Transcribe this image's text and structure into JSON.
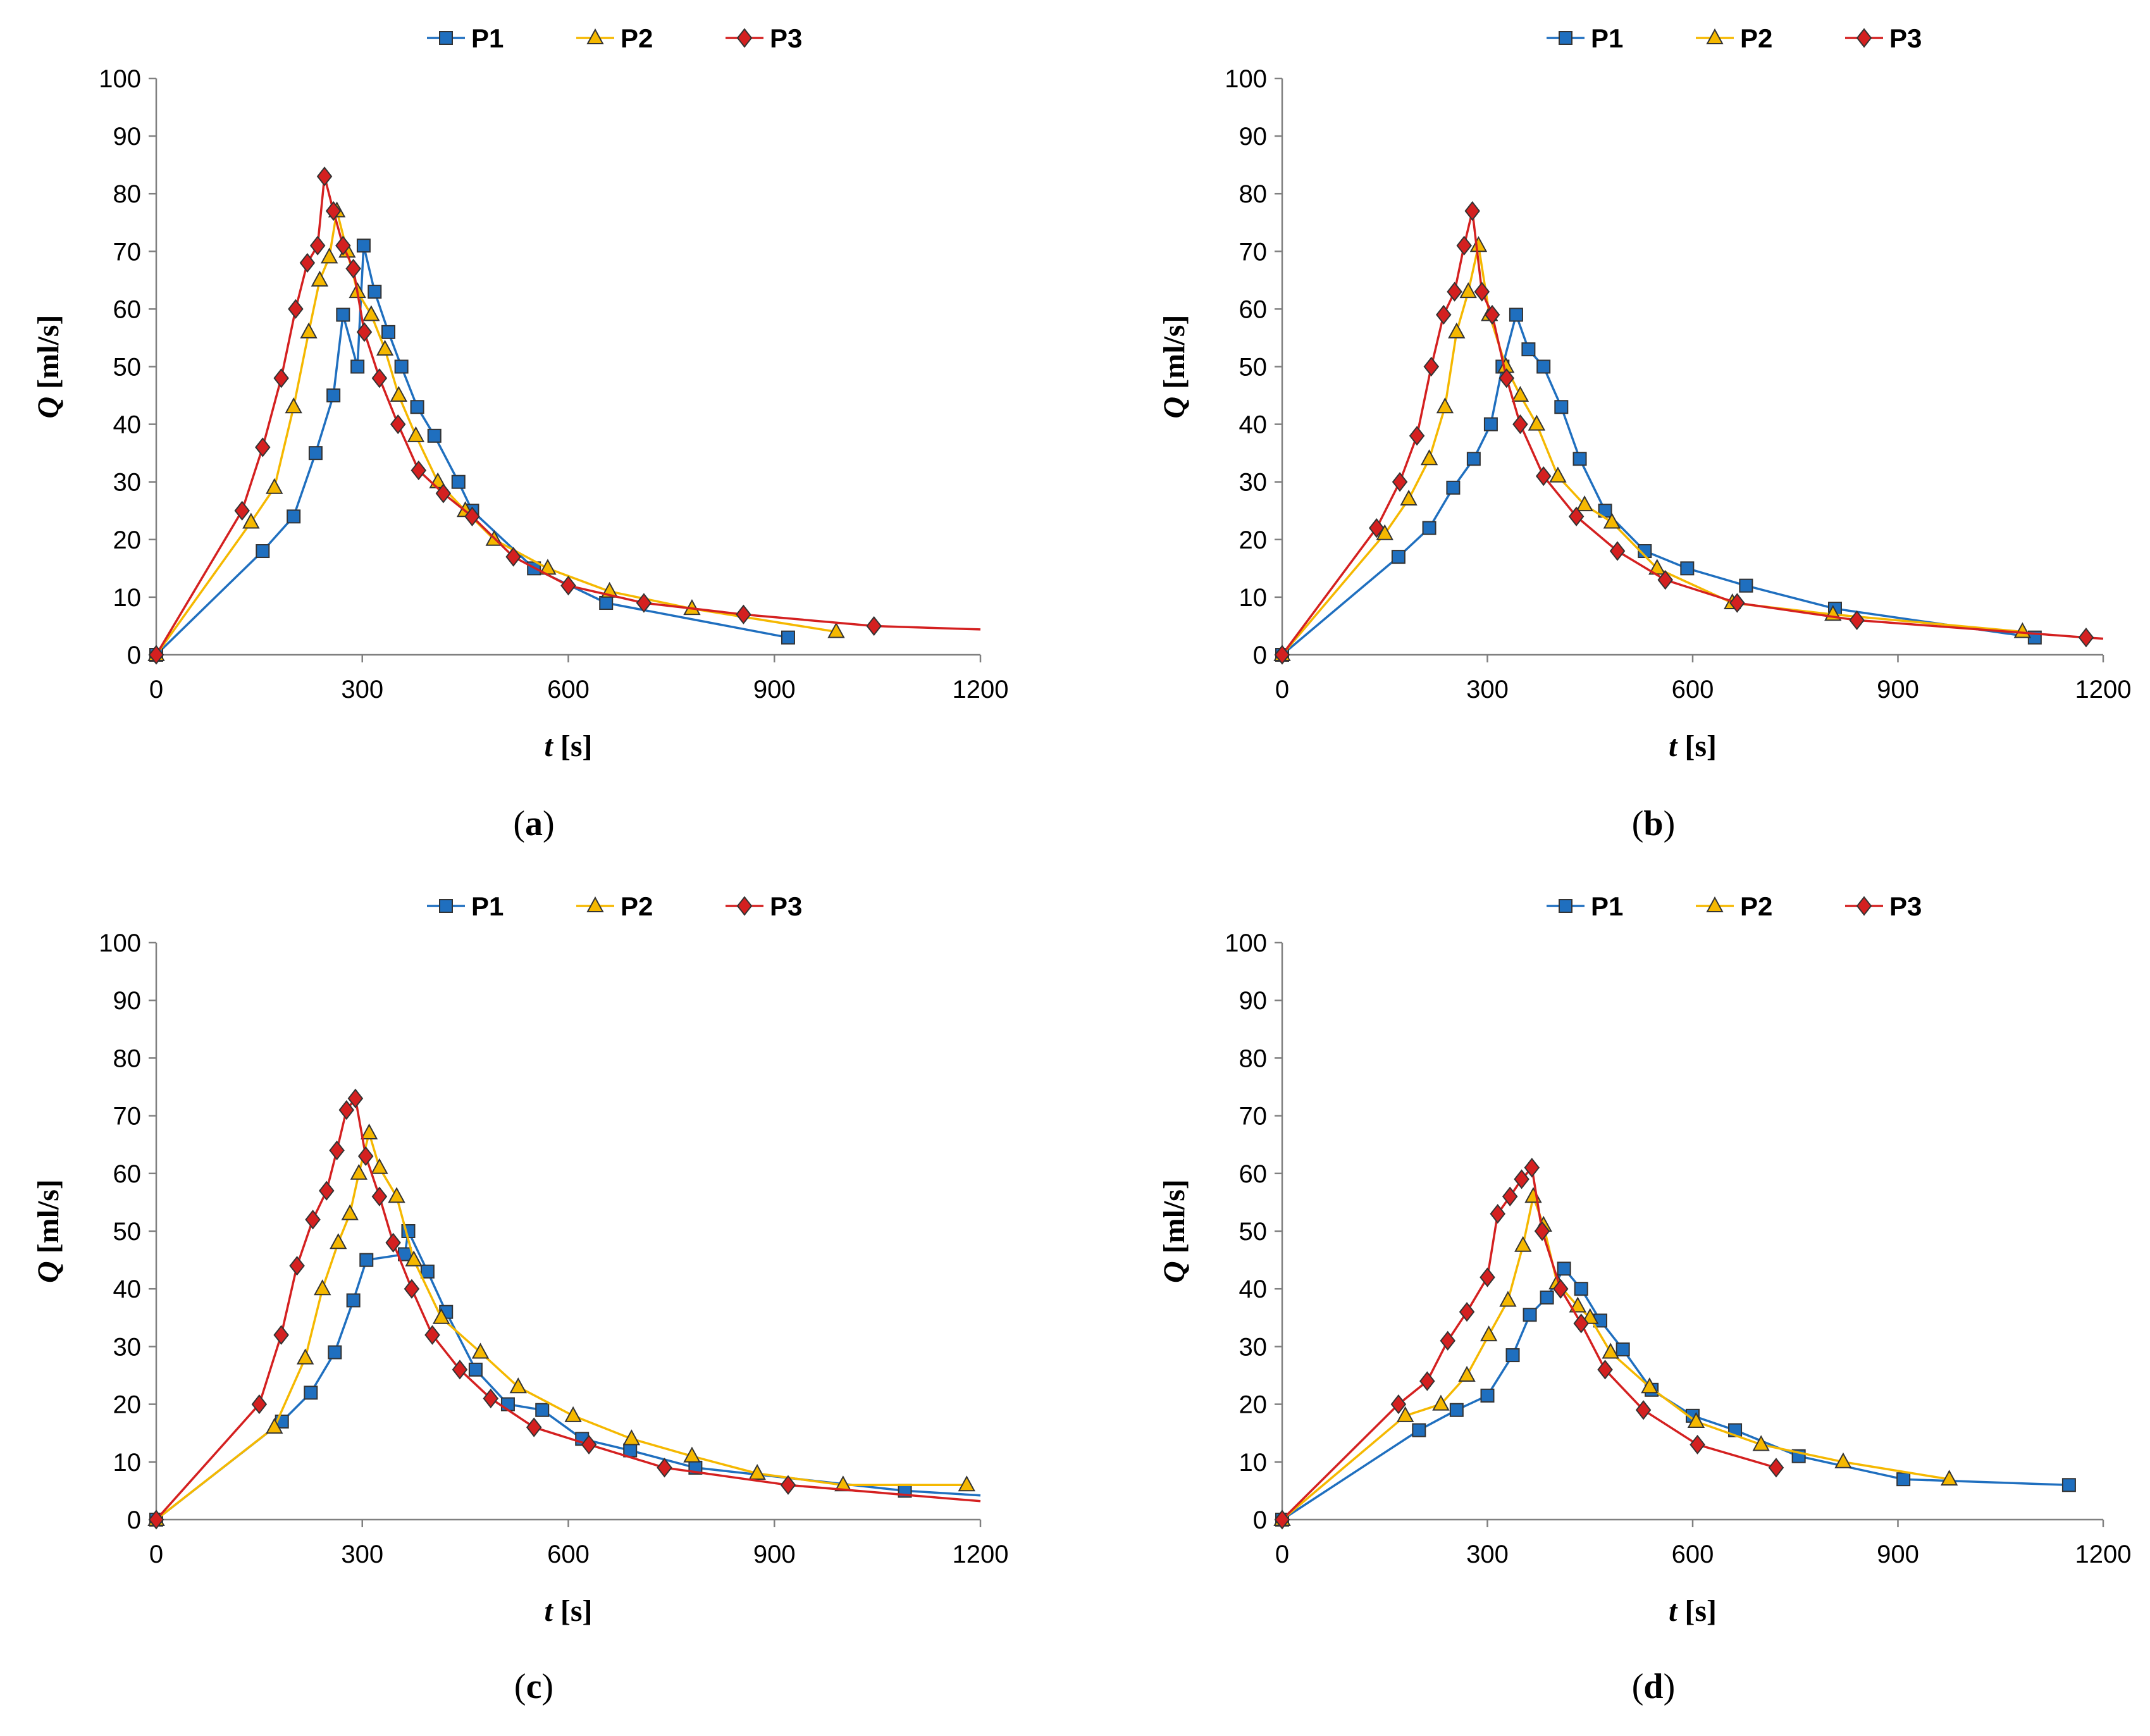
{
  "colors": {
    "P1": "#1f6fbf",
    "P2": "#f5b800",
    "P3": "#d42020",
    "axis": "#808080"
  },
  "chart_data": [
    {
      "panel": "a",
      "caption": "a",
      "type": "line",
      "xlabel_var": "t",
      "xlabel_unit": "[s]",
      "ylabel_var": "Q",
      "ylabel_unit": "[ml/s]",
      "xlim": [
        0,
        1200
      ],
      "ylim": [
        0,
        100
      ],
      "xticks": [
        0,
        300,
        600,
        900,
        1200
      ],
      "yticks": [
        0,
        10,
        20,
        30,
        40,
        50,
        60,
        70,
        80,
        90,
        100
      ],
      "legend": [
        "P1",
        "P2",
        "P3"
      ],
      "series": [
        {
          "name": "P1",
          "marker": "square",
          "points": [
            [
              0,
              0
            ],
            [
              155,
              18
            ],
            [
              200,
              24
            ],
            [
              232,
              35
            ],
            [
              258,
              45
            ],
            [
              272,
              59
            ],
            [
              293,
              50
            ],
            [
              302,
              71
            ],
            [
              318,
              63
            ],
            [
              338,
              56
            ],
            [
              357,
              50
            ],
            [
              380,
              43
            ],
            [
              405,
              38
            ],
            [
              440,
              30
            ],
            [
              460,
              25
            ],
            [
              550,
              15
            ],
            [
              655,
              9
            ],
            [
              920,
              3
            ]
          ]
        },
        {
          "name": "P2",
          "marker": "triangle",
          "points": [
            [
              0,
              0
            ],
            [
              138,
              23
            ],
            [
              172,
              29
            ],
            [
              200,
              43
            ],
            [
              222,
              56
            ],
            [
              238,
              65
            ],
            [
              252,
              69
            ],
            [
              263,
              77
            ],
            [
              278,
              70
            ],
            [
              293,
              63
            ],
            [
              313,
              59
            ],
            [
              333,
              53
            ],
            [
              353,
              45
            ],
            [
              378,
              38
            ],
            [
              410,
              30
            ],
            [
              450,
              25
            ],
            [
              492,
              20
            ],
            [
              570,
              15
            ],
            [
              660,
              11
            ],
            [
              780,
              8
            ],
            [
              990,
              4
            ]
          ]
        },
        {
          "name": "P3",
          "marker": "diamond",
          "points": [
            [
              0,
              0
            ],
            [
              125,
              25
            ],
            [
              155,
              36
            ],
            [
              182,
              48
            ],
            [
              203,
              60
            ],
            [
              220,
              68
            ],
            [
              235,
              71
            ],
            [
              245,
              83
            ],
            [
              258,
              77
            ],
            [
              272,
              71
            ],
            [
              287,
              67
            ],
            [
              303,
              56
            ],
            [
              325,
              48
            ],
            [
              352,
              40
            ],
            [
              382,
              32
            ],
            [
              418,
              28
            ],
            [
              460,
              24
            ],
            [
              520,
              17
            ],
            [
              600,
              12
            ],
            [
              710,
              9
            ],
            [
              855,
              7
            ],
            [
              1045,
              5
            ],
            [
              1200,
              4.4
            ]
          ]
        }
      ]
    },
    {
      "panel": "b",
      "caption": "b",
      "type": "line",
      "xlabel_var": "t",
      "xlabel_unit": "[s]",
      "ylabel_var": "Q",
      "ylabel_unit": "[ml/s]",
      "xlim": [
        0,
        1200
      ],
      "ylim": [
        0,
        100
      ],
      "xticks": [
        0,
        300,
        600,
        900,
        1200
      ],
      "yticks": [
        0,
        10,
        20,
        30,
        40,
        50,
        60,
        70,
        80,
        90,
        100
      ],
      "legend": [
        "P1",
        "P2",
        "P3"
      ],
      "series": [
        {
          "name": "P1",
          "marker": "square",
          "points": [
            [
              0,
              0
            ],
            [
              170,
              17
            ],
            [
              215,
              22
            ],
            [
              250,
              29
            ],
            [
              280,
              34
            ],
            [
              305,
              40
            ],
            [
              322,
              50
            ],
            [
              342,
              59
            ],
            [
              360,
              53
            ],
            [
              382,
              50
            ],
            [
              408,
              43
            ],
            [
              435,
              34
            ],
            [
              472,
              25
            ],
            [
              530,
              18
            ],
            [
              592,
              15
            ],
            [
              678,
              12
            ],
            [
              808,
              8
            ],
            [
              1100,
              3
            ]
          ]
        },
        {
          "name": "P2",
          "marker": "triangle",
          "points": [
            [
              0,
              0
            ],
            [
              150,
              21
            ],
            [
              185,
              27
            ],
            [
              215,
              34
            ],
            [
              238,
              43
            ],
            [
              255,
              56
            ],
            [
              272,
              63
            ],
            [
              287,
              71
            ],
            [
              303,
              59
            ],
            [
              327,
              50
            ],
            [
              348,
              45
            ],
            [
              372,
              40
            ],
            [
              403,
              31
            ],
            [
              442,
              26
            ],
            [
              482,
              23
            ],
            [
              548,
              15
            ],
            [
              658,
              9
            ],
            [
              805,
              7
            ],
            [
              1082,
              4
            ]
          ]
        },
        {
          "name": "P3",
          "marker": "diamond",
          "points": [
            [
              0,
              0
            ],
            [
              138,
              22
            ],
            [
              172,
              30
            ],
            [
              197,
              38
            ],
            [
              218,
              50
            ],
            [
              236,
              59
            ],
            [
              252,
              63
            ],
            [
              266,
              71
            ],
            [
              278,
              77
            ],
            [
              292,
              63
            ],
            [
              307,
              59
            ],
            [
              328,
              48
            ],
            [
              348,
              40
            ],
            [
              382,
              31
            ],
            [
              430,
              24
            ],
            [
              490,
              18
            ],
            [
              560,
              13
            ],
            [
              665,
              9
            ],
            [
              840,
              6
            ],
            [
              1175,
              3
            ],
            [
              1200,
              2.8
            ]
          ]
        }
      ]
    },
    {
      "panel": "c",
      "caption": "c",
      "type": "line",
      "xlabel_var": "t",
      "xlabel_unit": "[s]",
      "ylabel_var": "Q",
      "ylabel_unit": "[ml/s]",
      "xlim": [
        0,
        1200
      ],
      "ylim": [
        0,
        100
      ],
      "xticks": [
        0,
        300,
        600,
        900,
        1200
      ],
      "yticks": [
        0,
        10,
        20,
        30,
        40,
        50,
        60,
        70,
        80,
        90,
        100
      ],
      "legend": [
        "P1",
        "P2",
        "P3"
      ],
      "series": [
        {
          "name": "P1",
          "marker": "square",
          "points": [
            [
              0,
              0
            ],
            [
              183,
              17
            ],
            [
              225,
              22
            ],
            [
              260,
              29
            ],
            [
              287,
              38
            ],
            [
              306,
              45
            ],
            [
              362,
              46
            ],
            [
              367,
              50
            ],
            [
              395,
              43
            ],
            [
              422,
              36
            ],
            [
              465,
              26
            ],
            [
              512,
              20
            ],
            [
              562,
              19
            ],
            [
              620,
              14
            ],
            [
              690,
              12
            ],
            [
              785,
              9
            ],
            [
              1090,
              5
            ],
            [
              1200,
              4.2
            ]
          ]
        },
        {
          "name": "P2",
          "marker": "triangle",
          "points": [
            [
              0,
              0
            ],
            [
              172,
              16
            ],
            [
              217,
              28
            ],
            [
              242,
              40
            ],
            [
              265,
              48
            ],
            [
              282,
              53
            ],
            [
              295,
              60
            ],
            [
              310,
              67
            ],
            [
              325,
              61
            ],
            [
              350,
              56
            ],
            [
              375,
              45
            ],
            [
              415,
              35
            ],
            [
              472,
              29
            ],
            [
              527,
              23
            ],
            [
              607,
              18
            ],
            [
              692,
              14
            ],
            [
              780,
              11
            ],
            [
              875,
              8
            ],
            [
              1000,
              6
            ],
            [
              1180,
              6
            ]
          ]
        },
        {
          "name": "P3",
          "marker": "diamond",
          "points": [
            [
              0,
              0
            ],
            [
              150,
              20
            ],
            [
              182,
              32
            ],
            [
              205,
              44
            ],
            [
              228,
              52
            ],
            [
              248,
              57
            ],
            [
              263,
              64
            ],
            [
              277,
              71
            ],
            [
              290,
              73
            ],
            [
              305,
              63
            ],
            [
              325,
              56
            ],
            [
              345,
              48
            ],
            [
              372,
              40
            ],
            [
              402,
              32
            ],
            [
              442,
              26
            ],
            [
              487,
              21
            ],
            [
              550,
              16
            ],
            [
              630,
              13
            ],
            [
              740,
              9
            ],
            [
              920,
              6
            ],
            [
              1200,
              3.2
            ]
          ]
        }
      ]
    },
    {
      "panel": "d",
      "caption": "d",
      "type": "line",
      "xlabel_var": "t",
      "xlabel_unit": "[s]",
      "ylabel_var": "Q",
      "ylabel_unit": "[ml/s]",
      "xlim": [
        0,
        1200
      ],
      "ylim": [
        0,
        100
      ],
      "xticks": [
        0,
        300,
        600,
        900,
        1200
      ],
      "yticks": [
        0,
        10,
        20,
        30,
        40,
        50,
        60,
        70,
        80,
        90,
        100
      ],
      "legend": [
        "P1",
        "P2",
        "P3"
      ],
      "series": [
        {
          "name": "P1",
          "marker": "square",
          "points": [
            [
              0,
              0
            ],
            [
              200,
              15.5
            ],
            [
              255,
              19
            ],
            [
              300,
              21.5
            ],
            [
              337,
              28.5
            ],
            [
              362,
              35.5
            ],
            [
              387,
              38.5
            ],
            [
              412,
              43.5
            ],
            [
              437,
              40
            ],
            [
              465,
              34.5
            ],
            [
              498,
              29.5
            ],
            [
              540,
              22.5
            ],
            [
              600,
              18
            ],
            [
              662,
              15.5
            ],
            [
              755,
              11
            ],
            [
              908,
              7
            ],
            [
              1150,
              6
            ]
          ]
        },
        {
          "name": "P2",
          "marker": "triangle",
          "points": [
            [
              0,
              0
            ],
            [
              180,
              18
            ],
            [
              232,
              20
            ],
            [
              270,
              25
            ],
            [
              302,
              32
            ],
            [
              330,
              38
            ],
            [
              352,
              47.5
            ],
            [
              367,
              56
            ],
            [
              382,
              51
            ],
            [
              402,
              41
            ],
            [
              432,
              37
            ],
            [
              450,
              35
            ],
            [
              480,
              29
            ],
            [
              537,
              23
            ],
            [
              605,
              17
            ],
            [
              700,
              13
            ],
            [
              820,
              10
            ],
            [
              975,
              7
            ]
          ]
        },
        {
          "name": "P3",
          "marker": "diamond",
          "points": [
            [
              0,
              0
            ],
            [
              170,
              20
            ],
            [
              212,
              24
            ],
            [
              242,
              31
            ],
            [
              270,
              36
            ],
            [
              300,
              42
            ],
            [
              315,
              53
            ],
            [
              333,
              56
            ],
            [
              350,
              59
            ],
            [
              365,
              61
            ],
            [
              380,
              50
            ],
            [
              407,
              40
            ],
            [
              437,
              34
            ],
            [
              472,
              26
            ],
            [
              528,
              19
            ],
            [
              607,
              13
            ],
            [
              722,
              9
            ]
          ]
        }
      ]
    }
  ]
}
